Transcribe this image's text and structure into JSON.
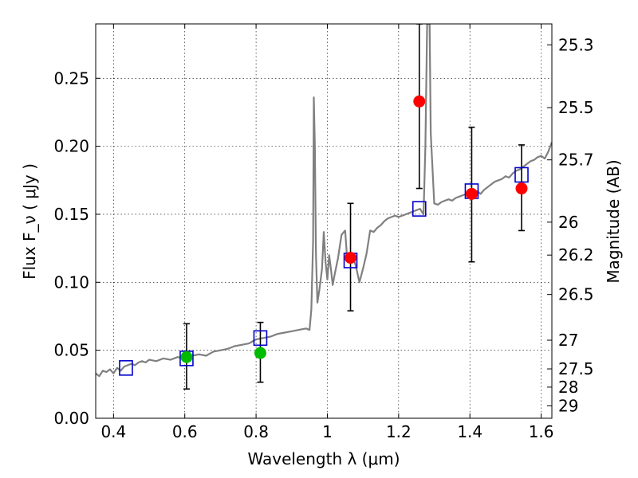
{
  "chart_data": {
    "type": "scatter",
    "xlabel": "Wavelength  λ (μm)",
    "ylabel": "Flux  F_ν  ( μJy )",
    "ylabel_right": "Magnitude (AB)",
    "xlim": [
      0.35,
      1.63
    ],
    "ylim": [
      0.0,
      0.29
    ],
    "grid": true,
    "x_ticks": [
      0.4,
      0.6,
      0.8,
      1.0,
      1.2,
      1.4,
      1.6
    ],
    "x_tick_labels": [
      "0.4",
      "0.6",
      "0.8",
      "1",
      "1.2",
      "1.4",
      "1.6"
    ],
    "y_ticks": [
      0.0,
      0.05,
      0.1,
      0.15,
      0.2,
      0.25
    ],
    "y_tick_labels": [
      "0.00",
      "0.05",
      "0.10",
      "0.15",
      "0.20",
      "0.25"
    ],
    "right_ticks": [
      {
        "label": "25.3",
        "flux": 0.2746
      },
      {
        "label": "25.5",
        "flux": 0.2284
      },
      {
        "label": "25.7",
        "flux": 0.19
      },
      {
        "label": "26",
        "flux": 0.1442
      },
      {
        "label": "26.2",
        "flux": 0.12
      },
      {
        "label": "26.5",
        "flux": 0.091
      },
      {
        "label": "27",
        "flux": 0.0574
      },
      {
        "label": "27.5",
        "flux": 0.0363
      },
      {
        "label": "28",
        "flux": 0.0229
      },
      {
        "label": "29",
        "flux": 0.0091
      }
    ],
    "series": [
      {
        "kind": "line",
        "color": "#808080",
        "points": [
          [
            0.35,
            0.033
          ],
          [
            0.36,
            0.031
          ],
          [
            0.37,
            0.035
          ],
          [
            0.38,
            0.034
          ],
          [
            0.39,
            0.036
          ],
          [
            0.4,
            0.033
          ],
          [
            0.41,
            0.037
          ],
          [
            0.42,
            0.035
          ],
          [
            0.43,
            0.038
          ],
          [
            0.44,
            0.039
          ],
          [
            0.45,
            0.04
          ],
          [
            0.46,
            0.039
          ],
          [
            0.47,
            0.041
          ],
          [
            0.48,
            0.042
          ],
          [
            0.49,
            0.041
          ],
          [
            0.5,
            0.043
          ],
          [
            0.52,
            0.042
          ],
          [
            0.54,
            0.044
          ],
          [
            0.56,
            0.043
          ],
          [
            0.58,
            0.045
          ],
          [
            0.6,
            0.044
          ],
          [
            0.62,
            0.046
          ],
          [
            0.64,
            0.047
          ],
          [
            0.66,
            0.046
          ],
          [
            0.68,
            0.049
          ],
          [
            0.7,
            0.05
          ],
          [
            0.72,
            0.051
          ],
          [
            0.74,
            0.053
          ],
          [
            0.76,
            0.054
          ],
          [
            0.78,
            0.055
          ],
          [
            0.8,
            0.058
          ],
          [
            0.82,
            0.059
          ],
          [
            0.84,
            0.06
          ],
          [
            0.86,
            0.062
          ],
          [
            0.88,
            0.063
          ],
          [
            0.9,
            0.064
          ],
          [
            0.92,
            0.065
          ],
          [
            0.94,
            0.066
          ],
          [
            0.95,
            0.065
          ],
          [
            0.955,
            0.08
          ],
          [
            0.96,
            0.13
          ],
          [
            0.962,
            0.236
          ],
          [
            0.965,
            0.2
          ],
          [
            0.968,
            0.12
          ],
          [
            0.972,
            0.085
          ],
          [
            0.978,
            0.095
          ],
          [
            0.985,
            0.11
          ],
          [
            0.99,
            0.137
          ],
          [
            0.995,
            0.115
          ],
          [
            1.0,
            0.102
          ],
          [
            1.005,
            0.12
          ],
          [
            1.01,
            0.11
          ],
          [
            1.015,
            0.098
          ],
          [
            1.02,
            0.105
          ],
          [
            1.03,
            0.118
          ],
          [
            1.04,
            0.135
          ],
          [
            1.05,
            0.138
          ],
          [
            1.055,
            0.12
          ],
          [
            1.06,
            0.115
          ],
          [
            1.065,
            0.118
          ],
          [
            1.07,
            0.12
          ],
          [
            1.08,
            0.112
          ],
          [
            1.09,
            0.1
          ],
          [
            1.1,
            0.11
          ],
          [
            1.11,
            0.121
          ],
          [
            1.12,
            0.138
          ],
          [
            1.13,
            0.137
          ],
          [
            1.14,
            0.14
          ],
          [
            1.15,
            0.142
          ],
          [
            1.16,
            0.145
          ],
          [
            1.17,
            0.147
          ],
          [
            1.18,
            0.148
          ],
          [
            1.19,
            0.149
          ],
          [
            1.2,
            0.148
          ],
          [
            1.21,
            0.149
          ],
          [
            1.22,
            0.15
          ],
          [
            1.23,
            0.151
          ],
          [
            1.24,
            0.152
          ],
          [
            1.25,
            0.153
          ],
          [
            1.26,
            0.154
          ],
          [
            1.27,
            0.15
          ],
          [
            1.275,
            0.2
          ],
          [
            1.28,
            0.29
          ],
          [
            1.287,
            0.29
          ],
          [
            1.29,
            0.21
          ],
          [
            1.3,
            0.158
          ],
          [
            1.31,
            0.157
          ],
          [
            1.32,
            0.159
          ],
          [
            1.33,
            0.16
          ],
          [
            1.34,
            0.161
          ],
          [
            1.35,
            0.16
          ],
          [
            1.36,
            0.162
          ],
          [
            1.37,
            0.163
          ],
          [
            1.38,
            0.164
          ],
          [
            1.39,
            0.165
          ],
          [
            1.4,
            0.166
          ],
          [
            1.41,
            0.166
          ],
          [
            1.42,
            0.167
          ],
          [
            1.43,
            0.165
          ],
          [
            1.44,
            0.168
          ],
          [
            1.45,
            0.17
          ],
          [
            1.46,
            0.172
          ],
          [
            1.47,
            0.174
          ],
          [
            1.48,
            0.175
          ],
          [
            1.49,
            0.176
          ],
          [
            1.5,
            0.178
          ],
          [
            1.51,
            0.177
          ],
          [
            1.52,
            0.18
          ],
          [
            1.53,
            0.182
          ],
          [
            1.54,
            0.183
          ],
          [
            1.55,
            0.185
          ],
          [
            1.56,
            0.187
          ],
          [
            1.57,
            0.189
          ],
          [
            1.58,
            0.19
          ],
          [
            1.59,
            0.192
          ],
          [
            1.6,
            0.193
          ],
          [
            1.61,
            0.191
          ],
          [
            1.62,
            0.196
          ],
          [
            1.63,
            0.203
          ]
        ]
      },
      {
        "kind": "square",
        "color": "#0000cc",
        "points": [
          [
            0.435,
            0.037
          ],
          [
            0.605,
            0.044
          ],
          [
            0.812,
            0.059
          ],
          [
            1.065,
            0.116
          ],
          [
            1.258,
            0.154
          ],
          [
            1.405,
            0.167
          ],
          [
            1.545,
            0.179
          ]
        ]
      },
      {
        "kind": "circle",
        "color": "#00bb00",
        "points": [
          [
            0.605,
            0.045,
            0.0215,
            0.0695
          ],
          [
            0.812,
            0.048,
            0.0265,
            0.0705
          ]
        ]
      },
      {
        "kind": "circle",
        "color": "#ff0000",
        "points": [
          [
            1.065,
            0.118,
            0.079,
            0.158
          ],
          [
            1.258,
            0.233,
            0.169,
            0.29
          ],
          [
            1.405,
            0.165,
            0.115,
            0.214
          ],
          [
            1.545,
            0.169,
            0.138,
            0.201
          ]
        ]
      }
    ]
  }
}
